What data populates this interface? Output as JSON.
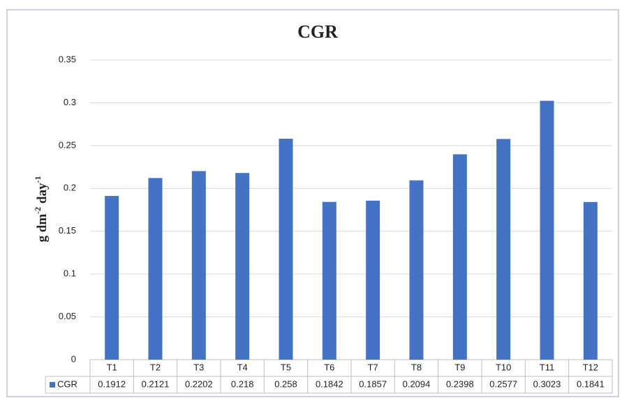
{
  "chart_data": {
    "type": "bar",
    "title": "CGR",
    "y_label": [
      "g dm",
      "-2",
      " day",
      "-1"
    ],
    "categories": [
      "T1",
      "T2",
      "T3",
      "T4",
      "T5",
      "T6",
      "T7",
      "T8",
      "T9",
      "T10",
      "T11",
      "T12"
    ],
    "series": [
      {
        "name": "CGR",
        "color": "#4472c4",
        "values": [
          0.1912,
          0.2121,
          0.2202,
          0.218,
          0.258,
          0.1842,
          0.1857,
          0.2094,
          0.2398,
          0.2577,
          0.3023,
          0.1841
        ]
      }
    ],
    "ylim": [
      0,
      0.35
    ],
    "yticks": [
      0,
      0.05,
      0.1,
      0.15,
      0.2,
      0.25,
      0.3,
      0.35
    ],
    "grid": true,
    "data_table": true
  }
}
